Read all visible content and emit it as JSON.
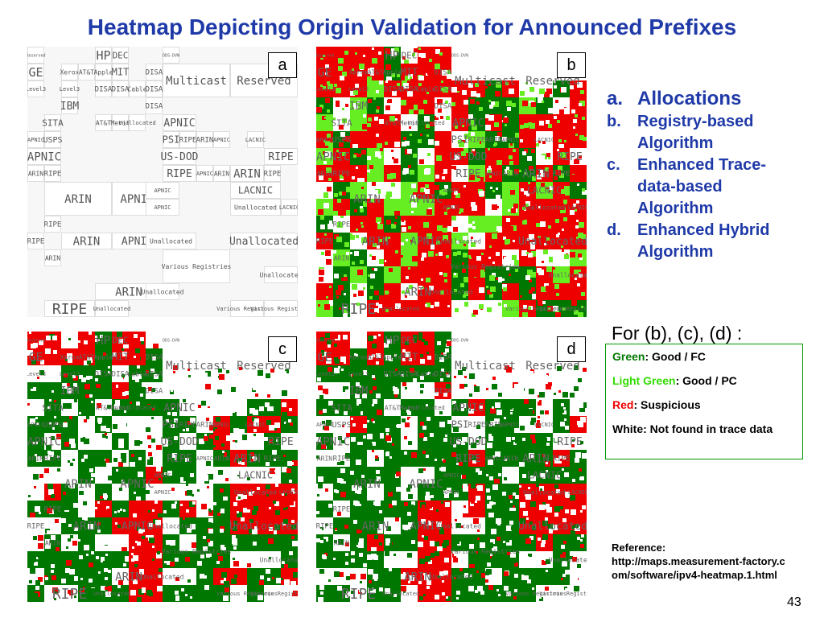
{
  "title": "Heatmap Depicting Origin Validation for Announced Prefixes",
  "panels": [
    {
      "id": "a",
      "label": "a",
      "mode": "plain"
    },
    {
      "id": "b",
      "label": "b",
      "mode": "registry"
    },
    {
      "id": "c",
      "label": "c",
      "mode": "trace"
    },
    {
      "id": "d",
      "label": "d",
      "mode": "hybrid"
    }
  ],
  "map_labels": {
    "reserved": "Reserved",
    "hp": "HP",
    "dec": "DEC",
    "dds": "DDS-DVN",
    "ge": "GE",
    "xerox": "Xerox",
    "att": "AT&T",
    "apple": "Apple",
    "mit": "MIT",
    "disa": "DISA",
    "multicast": "Multicast",
    "level3": "Level3",
    "cable": "Cable",
    "ibm": "IBM",
    "sita": "SITA",
    "merit": "Merit",
    "unallocated": "Unallocated",
    "apnic": "APNIC",
    "lacnic": "LACNIC",
    "usps": "USPS",
    "psi": "PSI",
    "ripe": "RIPE",
    "arin": "ARIN",
    "usdod": "US-DOD",
    "various": "Various Registries"
  },
  "legend": {
    "items": [
      {
        "letter": "a.",
        "text": "Allocations"
      },
      {
        "letter": "b.",
        "text": "Registry-based Algorithm"
      },
      {
        "letter": "c.",
        "text": "Enhanced Trace-data-based Algorithm"
      },
      {
        "letter": "d.",
        "text": "Enhanced Hybrid Algorithm"
      }
    ]
  },
  "for_label": "For (b), (c), (d) :",
  "color_key": {
    "green": {
      "name": "Green",
      "desc": ": Good / FC"
    },
    "light_green": {
      "name": "Light Green",
      "desc": ": Good / PC"
    },
    "red": {
      "name": "Red",
      "desc": ": Suspicious"
    },
    "white": {
      "text": "White: Not found in trace data"
    }
  },
  "reference": {
    "label": "Reference:",
    "url": "http://maps.measurement-factory.com/software/ipv4-heatmap.1.html"
  },
  "page_number": "43",
  "colors": {
    "title": "#1f3aa8",
    "green": "#007700",
    "light_green": "#66ee22",
    "red": "#ee0000",
    "white": "#ffffff",
    "key_border": "#009900"
  }
}
